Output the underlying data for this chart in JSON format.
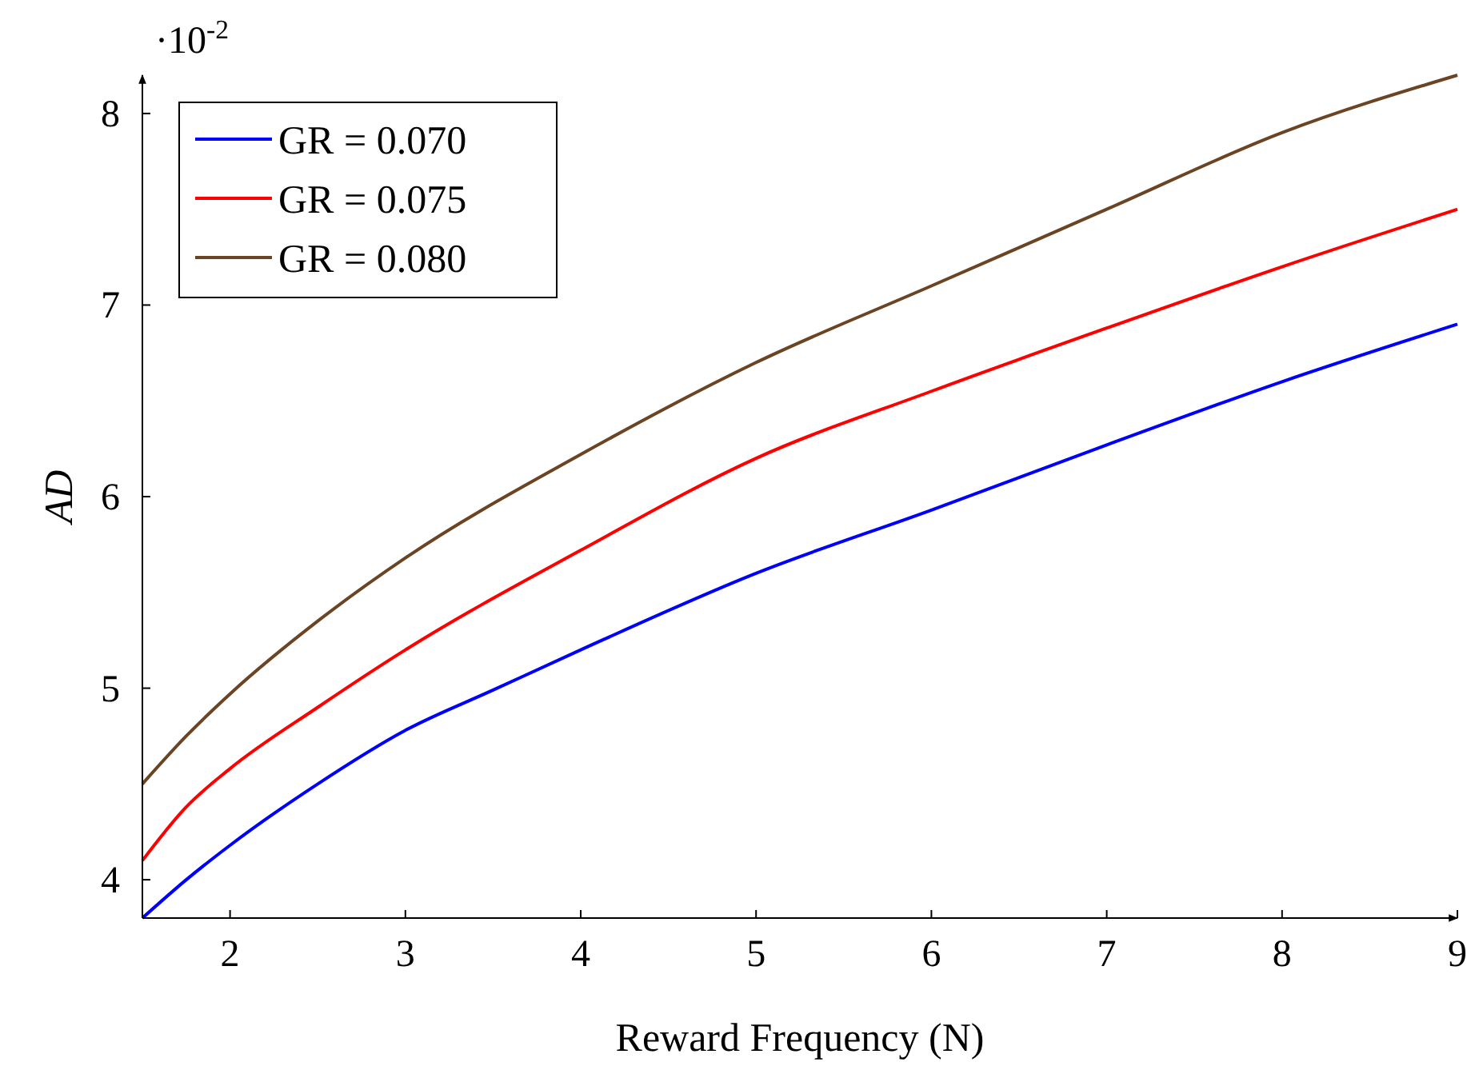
{
  "chart_data": {
    "type": "line",
    "xlabel": "Reward Frequency (N)",
    "ylabel": "AD",
    "annotations": [
      "·10$^{-2}$"
    ],
    "xlim": [
      1.5,
      9
    ],
    "xticks": [
      2,
      3,
      4,
      5,
      6,
      7,
      8,
      9
    ],
    "ylim": [
      3.8,
      8.2
    ],
    "yticks": [
      4,
      5,
      6,
      7,
      8
    ],
    "legend": "top left",
    "grid": false,
    "marker": "none",
    "line_style": "solid",
    "series": [
      {
        "name": "GR = 0.070",
        "color": "#0000ff",
        "x": [
          1.5,
          1.75,
          2,
          2.5,
          3,
          3.5,
          4,
          5,
          6,
          7,
          8,
          9
        ],
        "values": [
          3.8,
          4.0,
          4.18,
          4.5,
          4.78,
          4.99,
          5.2,
          5.6,
          5.93,
          6.27,
          6.6,
          6.9
        ]
      },
      {
        "name": "GR = 0.075",
        "color": "#ff0000",
        "x": [
          1.5,
          1.75,
          2,
          2.5,
          3,
          4,
          5,
          6,
          7,
          8,
          9
        ],
        "values": [
          4.1,
          4.38,
          4.58,
          4.9,
          5.2,
          5.72,
          6.2,
          6.55,
          6.88,
          7.2,
          7.5
        ]
      },
      {
        "name": "GR = 0.080",
        "color": "#6b4423",
        "x": [
          1.5,
          1.75,
          2,
          2.5,
          3,
          4,
          5,
          6,
          7,
          8,
          9
        ],
        "values": [
          4.5,
          4.75,
          4.97,
          5.35,
          5.68,
          6.22,
          6.7,
          7.1,
          7.5,
          7.9,
          8.2
        ]
      }
    ]
  }
}
